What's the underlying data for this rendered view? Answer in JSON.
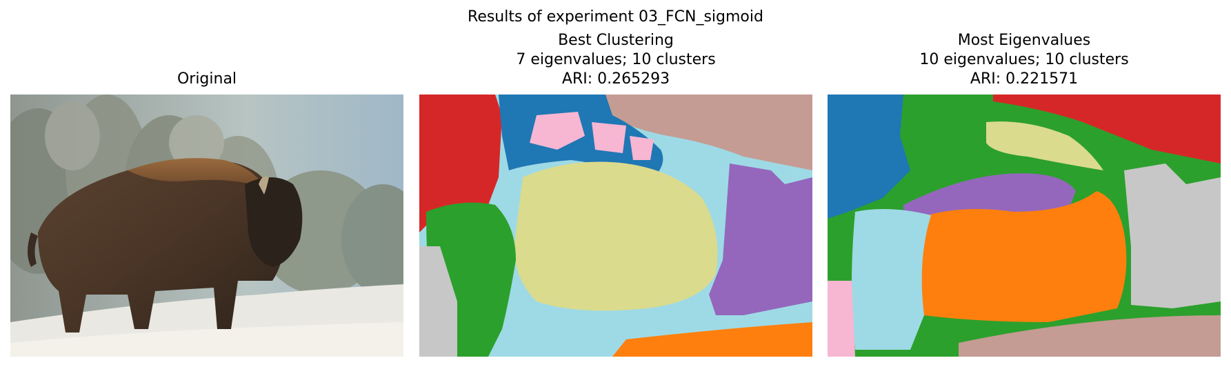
{
  "figure": {
    "suptitle": "Results of experiment 03_FCN_sigmoid"
  },
  "panels": [
    {
      "title_lines": [
        "Original"
      ]
    },
    {
      "title_lines": [
        "Best Clustering",
        "7 eigenvalues; 10 clusters",
        "ARI: 0.265293"
      ]
    },
    {
      "title_lines": [
        "Most Eigenvalues",
        "10 eigenvalues; 10 clusters",
        "ARI: 0.221571"
      ]
    }
  ],
  "colors": {
    "blue": "#1f77b4",
    "orange": "#ff7f0e",
    "green": "#2ca02c",
    "red": "#d62728",
    "purple": "#9467bd",
    "brown": "#c49c94",
    "pink": "#f7b6d2",
    "gray": "#c7c7c7",
    "olive": "#dbdb8d",
    "cyan": "#9edae5"
  }
}
